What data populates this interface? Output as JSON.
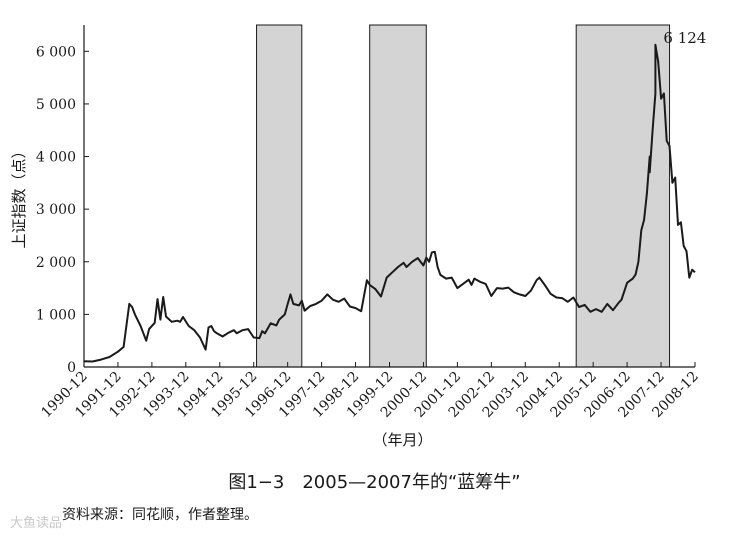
{
  "chart_data": {
    "type": "line",
    "ylabel": "上证指数（点）",
    "xlabel": "（年月）",
    "ylim": [
      0,
      6500
    ],
    "y_ticks": [
      0,
      1000,
      2000,
      3000,
      4000,
      5000,
      6000
    ],
    "y_tick_labels": [
      "0",
      "1 000",
      "2 000",
      "3 000",
      "4 000",
      "5 000",
      "6 000"
    ],
    "x_tick_labels": [
      "1990-12",
      "1991-12",
      "1992-12",
      "1993-12",
      "1994-12",
      "1995-12",
      "1996-12",
      "1997-12",
      "1998-12",
      "1999-12",
      "2000-12",
      "2001-12",
      "2002-12",
      "2003-12",
      "2004-12",
      "2005-12",
      "2006-12",
      "2007-12",
      "2008-12"
    ],
    "shaded_periods": [
      {
        "start": "1996-01",
        "end": "1997-05"
      },
      {
        "start": "1999-05",
        "end": "2001-01"
      },
      {
        "start": "2005-06",
        "end": "2008-03"
      }
    ],
    "annotation": {
      "label": "6 124",
      "x": "2007-10",
      "y": 6124
    },
    "series": [
      {
        "color": "#1a1a1a",
        "points": [
          [
            "1990-12",
            110
          ],
          [
            "1991-03",
            105
          ],
          [
            "1991-06",
            140
          ],
          [
            "1991-09",
            190
          ],
          [
            "1991-12",
            290
          ],
          [
            "1992-02",
            380
          ],
          [
            "1992-04",
            1200
          ],
          [
            "1992-05",
            1140
          ],
          [
            "1992-06",
            1000
          ],
          [
            "1992-08",
            780
          ],
          [
            "1992-10",
            500
          ],
          [
            "1992-11",
            720
          ],
          [
            "1993-01",
            840
          ],
          [
            "1993-02",
            1290
          ],
          [
            "1993-03",
            900
          ],
          [
            "1993-04",
            1330
          ],
          [
            "1993-05",
            960
          ],
          [
            "1993-07",
            860
          ],
          [
            "1993-09",
            880
          ],
          [
            "1993-10",
            860
          ],
          [
            "1993-11",
            950
          ],
          [
            "1994-01",
            780
          ],
          [
            "1994-03",
            700
          ],
          [
            "1994-05",
            560
          ],
          [
            "1994-07",
            330
          ],
          [
            "1994-08",
            750
          ],
          [
            "1994-09",
            780
          ],
          [
            "1994-10",
            680
          ],
          [
            "1994-11",
            640
          ],
          [
            "1995-01",
            580
          ],
          [
            "1995-03",
            650
          ],
          [
            "1995-05",
            700
          ],
          [
            "1995-06",
            640
          ],
          [
            "1995-08",
            700
          ],
          [
            "1995-10",
            720
          ],
          [
            "1995-12",
            560
          ],
          [
            "1996-02",
            550
          ],
          [
            "1996-03",
            680
          ],
          [
            "1996-04",
            640
          ],
          [
            "1996-06",
            830
          ],
          [
            "1996-08",
            790
          ],
          [
            "1996-09",
            900
          ],
          [
            "1996-11",
            1000
          ],
          [
            "1996-12",
            1200
          ],
          [
            "1997-01",
            1380
          ],
          [
            "1997-02",
            1200
          ],
          [
            "1997-04",
            1170
          ],
          [
            "1997-05",
            1260
          ],
          [
            "1997-06",
            1070
          ],
          [
            "1997-08",
            1160
          ],
          [
            "1997-10",
            1200
          ],
          [
            "1997-12",
            1260
          ],
          [
            "1998-02",
            1380
          ],
          [
            "1998-04",
            1280
          ],
          [
            "1998-06",
            1240
          ],
          [
            "1998-08",
            1300
          ],
          [
            "1998-10",
            1150
          ],
          [
            "1998-12",
            1120
          ],
          [
            "1999-02",
            1060
          ],
          [
            "1999-04",
            1650
          ],
          [
            "1999-05",
            1560
          ],
          [
            "1999-07",
            1480
          ],
          [
            "1999-09",
            1340
          ],
          [
            "1999-11",
            1700
          ],
          [
            "2000-01",
            1800
          ],
          [
            "2000-03",
            1900
          ],
          [
            "2000-05",
            1980
          ],
          [
            "2000-06",
            1900
          ],
          [
            "2000-08",
            2000
          ],
          [
            "2000-10",
            2070
          ],
          [
            "2000-12",
            1930
          ],
          [
            "2001-01",
            2080
          ],
          [
            "2001-02",
            2000
          ],
          [
            "2001-03",
            2180
          ],
          [
            "2001-04",
            2190
          ],
          [
            "2001-05",
            1900
          ],
          [
            "2001-06",
            1750
          ],
          [
            "2001-08",
            1680
          ],
          [
            "2001-10",
            1700
          ],
          [
            "2001-12",
            1500
          ],
          [
            "2002-02",
            1580
          ],
          [
            "2002-04",
            1660
          ],
          [
            "2002-05",
            1560
          ],
          [
            "2002-06",
            1680
          ],
          [
            "2002-08",
            1620
          ],
          [
            "2002-10",
            1580
          ],
          [
            "2002-12",
            1350
          ],
          [
            "2003-02",
            1500
          ],
          [
            "2003-04",
            1490
          ],
          [
            "2003-06",
            1510
          ],
          [
            "2003-08",
            1420
          ],
          [
            "2003-10",
            1380
          ],
          [
            "2003-12",
            1350
          ],
          [
            "2004-02",
            1450
          ],
          [
            "2004-04",
            1650
          ],
          [
            "2004-05",
            1700
          ],
          [
            "2004-07",
            1550
          ],
          [
            "2004-09",
            1390
          ],
          [
            "2004-11",
            1320
          ],
          [
            "2005-01",
            1310
          ],
          [
            "2005-03",
            1240
          ],
          [
            "2005-05",
            1320
          ],
          [
            "2005-07",
            1140
          ],
          [
            "2005-09",
            1180
          ],
          [
            "2005-11",
            1050
          ],
          [
            "2006-01",
            1100
          ],
          [
            "2006-03",
            1050
          ],
          [
            "2006-05",
            1200
          ],
          [
            "2006-07",
            1080
          ],
          [
            "2006-09",
            1220
          ],
          [
            "2006-10",
            1280
          ],
          [
            "2006-12",
            1600
          ],
          [
            "2007-01",
            1640
          ],
          [
            "2007-02",
            1680
          ],
          [
            "2007-03",
            1760
          ],
          [
            "2007-04",
            2000
          ],
          [
            "2007-05",
            2600
          ],
          [
            "2007-06",
            2800
          ],
          [
            "2007-07",
            3300
          ],
          [
            "2007-08",
            4000
          ],
          [
            "2007-08",
            3700
          ],
          [
            "2007-09",
            4500
          ],
          [
            "2007-10",
            5200
          ],
          [
            "2007-10",
            6124
          ],
          [
            "2007-11",
            5800
          ],
          [
            "2007-12",
            5100
          ],
          [
            "2008-01",
            5200
          ],
          [
            "2008-02",
            4300
          ],
          [
            "2008-03",
            4200
          ],
          [
            "2008-04",
            3500
          ],
          [
            "2008-05",
            3600
          ],
          [
            "2008-06",
            2700
          ],
          [
            "2008-07",
            2750
          ],
          [
            "2008-08",
            2300
          ],
          [
            "2008-09",
            2200
          ],
          [
            "2008-10",
            1700
          ],
          [
            "2008-11",
            1850
          ],
          [
            "2008-12",
            1800
          ]
        ]
      }
    ]
  },
  "caption": "图1−3　2005—2007年的“蓝筹牛”",
  "source": "资料来源：同花顺，作者整理。",
  "watermark": "大鱼读品"
}
